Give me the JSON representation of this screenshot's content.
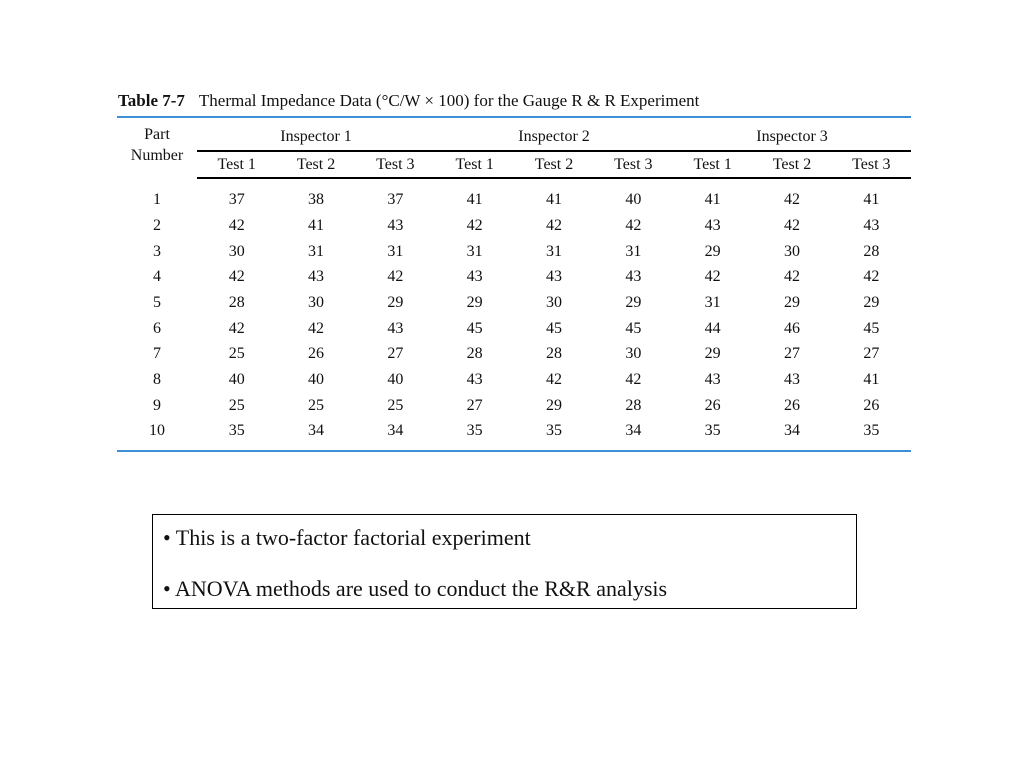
{
  "caption": {
    "number": "Table 7-7",
    "title": "Thermal Impedance Data (°C/W × 100) for the Gauge R & R Experiment"
  },
  "colors": {
    "rule": "#3d8fd6"
  },
  "table": {
    "part_header": [
      "Part",
      "Number"
    ],
    "inspectors": [
      "Inspector 1",
      "Inspector 2",
      "Inspector 3"
    ],
    "tests": [
      "Test 1",
      "Test 2",
      "Test 3"
    ],
    "rows": [
      [
        "1",
        "37",
        "38",
        "37",
        "41",
        "41",
        "40",
        "41",
        "42",
        "41"
      ],
      [
        "2",
        "42",
        "41",
        "43",
        "42",
        "42",
        "42",
        "43",
        "42",
        "43"
      ],
      [
        "3",
        "30",
        "31",
        "31",
        "31",
        "31",
        "31",
        "29",
        "30",
        "28"
      ],
      [
        "4",
        "42",
        "43",
        "42",
        "43",
        "43",
        "43",
        "42",
        "42",
        "42"
      ],
      [
        "5",
        "28",
        "30",
        "29",
        "29",
        "30",
        "29",
        "31",
        "29",
        "29"
      ],
      [
        "6",
        "42",
        "42",
        "43",
        "45",
        "45",
        "45",
        "44",
        "46",
        "45"
      ],
      [
        "7",
        "25",
        "26",
        "27",
        "28",
        "28",
        "30",
        "29",
        "27",
        "27"
      ],
      [
        "8",
        "40",
        "40",
        "40",
        "43",
        "42",
        "42",
        "43",
        "43",
        "41"
      ],
      [
        "9",
        "25",
        "25",
        "25",
        "27",
        "29",
        "28",
        "26",
        "26",
        "26"
      ],
      [
        "10",
        "35",
        "34",
        "34",
        "35",
        "35",
        "34",
        "35",
        "34",
        "35"
      ]
    ]
  },
  "notes": {
    "line1": "•  This is a two-factor factorial experiment",
    "line2": "• ANOVA methods are used to conduct the R&R analysis"
  }
}
